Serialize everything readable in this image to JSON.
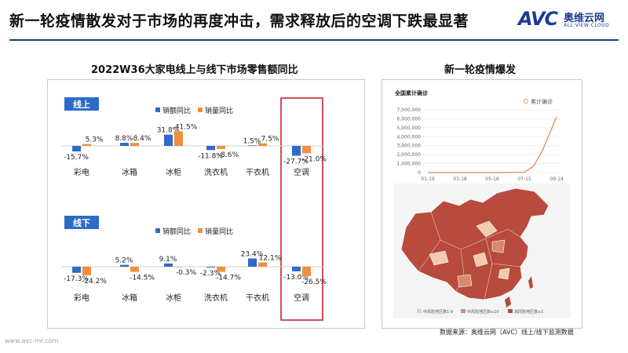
{
  "header": {
    "title": "新一轮疫情散发对于市场的再度冲击，需求释放后的空调下跌最显著",
    "logo_text": "AVC",
    "logo_cn": "奥维云网",
    "logo_en": "ALL VIEW CLOUD"
  },
  "left": {
    "subtitle": "2022W36大家电线上与线下市场零售额同比"
  },
  "right": {
    "subtitle": "新一轮疫情爆发",
    "line_title": "全国累计确诊",
    "line_legend": "累计确诊",
    "map_legend": [
      "中风险地区数1-9",
      "中风险地区数≥10",
      "高风险地区数≥1"
    ]
  },
  "footer": {
    "url": "www.avc-mr.com",
    "source": "数据来源：奥维云网（AVC）线上/线下监测数据"
  },
  "colors": {
    "brand": "#1a3d8f",
    "sales_value": "#2e6bc6",
    "sales_volume": "#f0903c",
    "highlight_box": "#c0282d",
    "map_dark": "#b84a3e",
    "map_mid": "#d88a6b",
    "map_light": "#f3c9b0",
    "line": "#e58a55"
  },
  "chart_data": [
    {
      "type": "bar",
      "panel": "线上",
      "categories": [
        "彩电",
        "冰箱",
        "冰柜",
        "洗衣机",
        "干衣机",
        "空调"
      ],
      "series": [
        {
          "name": "销额同比",
          "values": [
            -15.7,
            8.8,
            31.8,
            -11.8,
            1.5,
            -27.7
          ]
        },
        {
          "name": "销量同比",
          "values": [
            5.3,
            8.4,
            41.5,
            -8.6,
            7.5,
            -21.0
          ]
        }
      ],
      "data_labels": {
        "销额同比": [
          "-15.7%",
          "8.8%",
          "31.8%",
          "-11.8%",
          "1.5%",
          "-27.7%"
        ],
        "销量同比": [
          "5.3%",
          "8.4%",
          "41.5%",
          "-8.6%",
          "7.5%",
          "-21.0%"
        ]
      },
      "highlight_category": "空调",
      "legend_position": "top",
      "grid": false
    },
    {
      "type": "bar",
      "panel": "线下",
      "categories": [
        "彩电",
        "冰箱",
        "冰柜",
        "洗衣机",
        "干衣机",
        "空调"
      ],
      "series": [
        {
          "name": "销额同比",
          "values": [
            -17.3,
            5.2,
            9.1,
            -2.3,
            23.4,
            -13.0
          ]
        },
        {
          "name": "销量同比",
          "values": [
            -24.2,
            -14.5,
            -0.3,
            -14.7,
            12.1,
            -26.5
          ]
        }
      ],
      "data_labels": {
        "销额同比": [
          "-17.3%",
          "5.2%",
          "9.1%",
          "-2.3%",
          "23.4%",
          "-13.0%"
        ],
        "销量同比": [
          "-24.2%",
          "-14.5%",
          "-0.3%",
          "-14.7%",
          "12.1%",
          "-26.5%"
        ]
      },
      "highlight_category": "空调",
      "legend_position": "top",
      "grid": false
    },
    {
      "type": "line",
      "title": "全国累计确诊",
      "x": [
        "01-19",
        "03-18",
        "05-16",
        "07-15",
        "09-14"
      ],
      "series": [
        {
          "name": "累计确诊",
          "values": [
            0,
            0,
            0,
            30000,
            6200000
          ]
        }
      ],
      "y_ticks": [
        "0",
        "1,000,000",
        "2,000,000",
        "3,000,000",
        "4,000,000",
        "5,000,000",
        "6,000,000",
        "7,000,000"
      ],
      "ylim": [
        0,
        7000000
      ],
      "legend_position": "top-right",
      "grid": true
    }
  ]
}
